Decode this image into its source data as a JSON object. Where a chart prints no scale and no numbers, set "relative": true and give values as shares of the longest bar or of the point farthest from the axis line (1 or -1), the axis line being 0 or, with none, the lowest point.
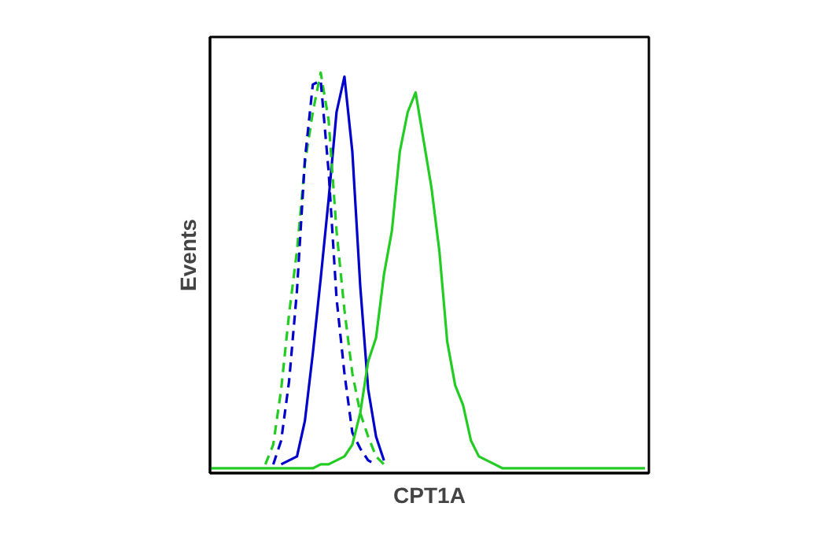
{
  "chart_data": {
    "type": "line",
    "relative": true,
    "xlabel": "CPT1A",
    "ylabel": "Events",
    "categories": [
      null,
      null,
      null,
      null,
      null,
      null,
      null,
      null,
      null,
      null,
      null,
      null,
      null,
      null,
      null,
      null,
      null,
      null,
      null,
      null,
      null,
      null,
      null,
      null,
      null,
      null,
      null,
      null,
      null,
      null,
      null,
      null,
      null,
      null,
      null,
      null,
      null,
      null,
      null,
      null,
      null,
      null,
      null,
      null,
      null,
      null,
      null,
      null,
      null,
      null,
      null,
      null,
      null,
      null,
      null,
      null
    ],
    "series": [
      {
        "color": "#0000cc",
        "line_style": "solid",
        "values": [
          null,
          null,
          null,
          null,
          null,
          null,
          null,
          null,
          null,
          0.01,
          0.02,
          0.03,
          0.12,
          0.29,
          0.48,
          0.68,
          0.9,
          0.99,
          0.8,
          0.46,
          0.2,
          0.08,
          0.02,
          null,
          null,
          null,
          null,
          null,
          null,
          null,
          null,
          null,
          null,
          null,
          null,
          null,
          null,
          null,
          null,
          null,
          null,
          null,
          null,
          null,
          null,
          null,
          null,
          null,
          null,
          null,
          null,
          null,
          null,
          null,
          null,
          null
        ]
      },
      {
        "color": "#22cc22",
        "line_style": "dashed",
        "values": [
          null,
          null,
          null,
          null,
          null,
          null,
          null,
          0.01,
          0.06,
          0.2,
          0.39,
          0.55,
          0.77,
          0.9,
          1,
          0.88,
          0.6,
          0.4,
          0.24,
          0.14,
          0.08,
          0.03,
          0.01,
          null,
          null,
          null,
          null,
          null,
          null,
          null,
          null,
          null,
          null,
          null,
          null,
          null,
          null,
          null,
          null,
          null,
          null,
          null,
          null,
          null,
          null,
          null,
          null,
          null,
          null,
          null,
          null,
          null,
          null,
          null,
          null,
          null
        ]
      },
      {
        "color": "#0000cc",
        "line_style": "dashed",
        "values": [
          null,
          null,
          null,
          null,
          null,
          null,
          null,
          null,
          0.01,
          0.07,
          0.22,
          0.45,
          0.78,
          0.97,
          0.98,
          0.75,
          0.43,
          0.24,
          0.09,
          0.05,
          0.02,
          0.01,
          null,
          null,
          null,
          null,
          null,
          null,
          null,
          null,
          null,
          null,
          null,
          null,
          null,
          null,
          null,
          null,
          null,
          null,
          null,
          null,
          null,
          null,
          null,
          null,
          null,
          null,
          null,
          null,
          null,
          null,
          null,
          null,
          null,
          null
        ]
      },
      {
        "color": "#22cc22",
        "line_style": "solid",
        "values": [
          0,
          0,
          0,
          0,
          0,
          0,
          0,
          0,
          0,
          0,
          0,
          0,
          0,
          0,
          0.01,
          0.01,
          0.02,
          0.03,
          0.06,
          0.14,
          0.27,
          0.33,
          0.49,
          0.6,
          0.8,
          0.9,
          0.95,
          0.83,
          0.71,
          0.55,
          0.32,
          0.21,
          0.16,
          0.07,
          0.03,
          0.02,
          0.01,
          0,
          0,
          0,
          0,
          0,
          0,
          0,
          0,
          0,
          0,
          0,
          0,
          0,
          0,
          0,
          0,
          0,
          0,
          0
        ]
      }
    ]
  }
}
